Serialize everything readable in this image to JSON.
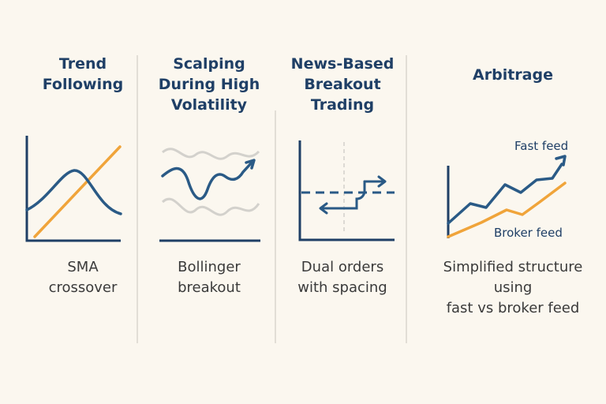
{
  "colors": {
    "background": "#fbf7ef",
    "navy": "#1f3f66",
    "blue": "#2a5a86",
    "orange": "#f0a43a",
    "gray": "#d3d1cc",
    "divider": "#e2ded6"
  },
  "panels": [
    {
      "title": "Trend\nFollowing",
      "caption": "SMA\ncrossover"
    },
    {
      "title": "Scalping\nDuring High\nVolatility",
      "caption": "Bollinger\nbreakout"
    },
    {
      "title": "News-Based\nBreakout\nTrading",
      "caption": "Dual orders\nwith spacing"
    },
    {
      "title": "Arbitrage",
      "caption": "Simplified structure\nusing\nfast vs broker feed",
      "labels": {
        "fast_feed": "Fast feed",
        "broker_feed": "Broker feed"
      }
    }
  ]
}
